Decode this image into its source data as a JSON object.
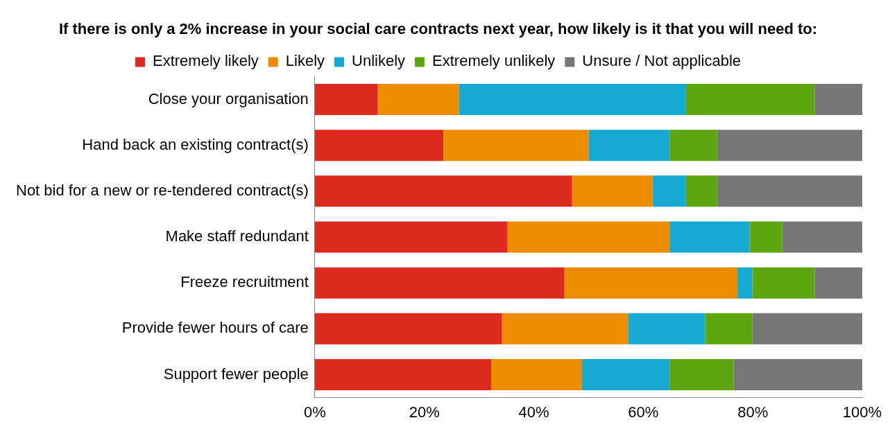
{
  "chart_data": {
    "type": "bar",
    "orientation": "horizontal",
    "stacked": true,
    "title": "If there is only a 2% increase in your social care contracts next year, how likely is it that you will need to:",
    "categories": [
      "Close your organisation",
      "Hand back an existing contract(s)",
      "Not bid for a new or re-tendered contract(s)",
      "Make staff redundant",
      "Freeze recruitment",
      "Provide fewer hours of care",
      "Support fewer people"
    ],
    "series": [
      {
        "name": "Extremely likely",
        "color": "#dc2a1f",
        "values": [
          11.5,
          23.5,
          47.0,
          35.2,
          45.6,
          34.2,
          32.2
        ]
      },
      {
        "name": "Likely",
        "color": "#ee8c00",
        "values": [
          14.8,
          26.5,
          14.7,
          29.6,
          31.6,
          23.0,
          16.6
        ]
      },
      {
        "name": "Unlikely",
        "color": "#16a9d1",
        "values": [
          41.5,
          14.8,
          6.1,
          14.6,
          2.7,
          14.1,
          16.0
        ]
      },
      {
        "name": "Extremely unlikely",
        "color": "#5ea50f",
        "values": [
          23.5,
          8.7,
          5.7,
          6.0,
          11.4,
          8.6,
          11.7
        ]
      },
      {
        "name": "Unsure / Not applicable",
        "color": "#777777",
        "values": [
          8.7,
          26.5,
          26.5,
          14.6,
          8.7,
          20.1,
          23.5
        ]
      }
    ],
    "xlim": [
      0,
      100
    ],
    "xticks": [
      {
        "value": 0,
        "label": "0%"
      },
      {
        "value": 20,
        "label": "20%"
      },
      {
        "value": 40,
        "label": "40%"
      },
      {
        "value": 60,
        "label": "60%"
      },
      {
        "value": 80,
        "label": "80%"
      },
      {
        "value": 100,
        "label": "100%"
      }
    ],
    "grid": false,
    "legend": "top"
  }
}
